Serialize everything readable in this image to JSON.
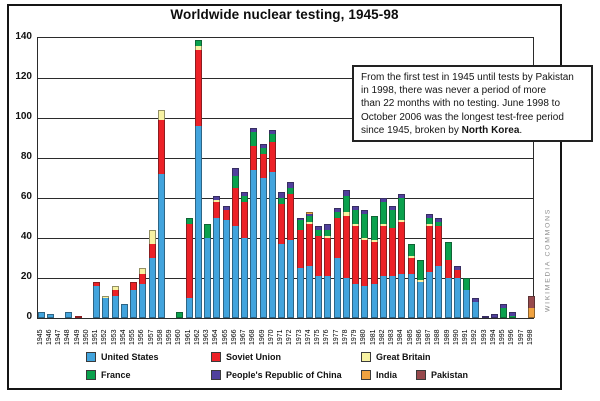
{
  "title": "Worldwide nuclear testing, 1945-98",
  "watermark": "WIKIMEDIA COMMONS",
  "caption": {
    "lines": [
      "From the first test in 1945 until tests by Pakistan",
      "in 1998, there was never a period of more",
      "than 22 months with no testing. June 1998 to",
      "October 2006 was the longest test-free period"
    ],
    "last_line_prefix": "since 1945, broken by ",
    "last_line_bold": "North Korea",
    "last_line_suffix": "."
  },
  "colors": {
    "grid": "#2b2b2b",
    "frame_border": "#151515",
    "watermark_gray": "#8c8c8c",
    "background": "#ffffff"
  },
  "chart_data": {
    "type": "bar",
    "stacked": true,
    "title": "Worldwide nuclear testing, 1945-98",
    "xlabel": "",
    "ylabel": "",
    "ylim": [
      0,
      140
    ],
    "yticks": [
      0,
      20,
      40,
      60,
      80,
      100,
      120,
      140
    ],
    "grid": true,
    "legend_position": "bottom",
    "categories": [
      1945,
      1946,
      1947,
      1948,
      1949,
      1950,
      1951,
      1952,
      1953,
      1954,
      1955,
      1956,
      1957,
      1958,
      1959,
      1960,
      1961,
      1962,
      1963,
      1964,
      1965,
      1966,
      1967,
      1968,
      1969,
      1970,
      1971,
      1972,
      1973,
      1974,
      1975,
      1976,
      1977,
      1978,
      1979,
      1980,
      1981,
      1982,
      1983,
      1984,
      1985,
      1986,
      1987,
      1988,
      1989,
      1990,
      1991,
      1992,
      1993,
      1994,
      1995,
      1996,
      1997,
      1998
    ],
    "series": [
      {
        "name": "United States",
        "color": "#42a4dd",
        "values": [
          3,
          2,
          0,
          3,
          0,
          0,
          16,
          10,
          11,
          7,
          14,
          17,
          30,
          72,
          0,
          0,
          10,
          96,
          40,
          50,
          49,
          46,
          40,
          74,
          70,
          73,
          37,
          39,
          25,
          26,
          21,
          21,
          30,
          20,
          17,
          16,
          17,
          21,
          21,
          22,
          22,
          18,
          23,
          26,
          20,
          20,
          14,
          8,
          0,
          0,
          0,
          0,
          0,
          0
        ]
      },
      {
        "name": "Soviet Union",
        "color": "#ec2127",
        "values": [
          0,
          0,
          0,
          0,
          1,
          0,
          2,
          0,
          3,
          0,
          4,
          5,
          7,
          27,
          0,
          0,
          37,
          38,
          0,
          8,
          5,
          19,
          18,
          12,
          12,
          15,
          20,
          23,
          19,
          21,
          20,
          19,
          20,
          31,
          29,
          23,
          21,
          25,
          24,
          26,
          8,
          0,
          23,
          20,
          9,
          4,
          0,
          0,
          0,
          0,
          0,
          0,
          0,
          0
        ]
      },
      {
        "name": "Great Britain",
        "color": "#f7f2a2",
        "values": [
          0,
          0,
          0,
          0,
          0,
          0,
          0,
          1,
          2,
          0,
          0,
          3,
          7,
          5,
          0,
          0,
          0,
          2,
          0,
          1,
          0,
          0,
          0,
          0,
          0,
          0,
          0,
          0,
          0,
          1,
          0,
          1,
          0,
          2,
          1,
          1,
          1,
          1,
          0,
          1,
          1,
          1,
          1,
          0,
          0,
          0,
          0,
          0,
          0,
          0,
          0,
          0,
          0,
          0
        ]
      },
      {
        "name": "France",
        "color": "#0aa14d",
        "values": [
          0,
          0,
          0,
          0,
          0,
          0,
          0,
          0,
          0,
          0,
          0,
          0,
          0,
          0,
          0,
          3,
          3,
          3,
          7,
          0,
          0,
          6,
          3,
          7,
          3,
          4,
          3,
          3,
          5,
          3,
          3,
          3,
          3,
          8,
          7,
          12,
          12,
          11,
          9,
          11,
          6,
          10,
          3,
          2,
          9,
          0,
          6,
          0,
          0,
          0,
          5,
          1,
          0,
          0
        ]
      },
      {
        "name": "People's Republic of China",
        "color": "#50409d",
        "values": [
          0,
          0,
          0,
          0,
          0,
          0,
          0,
          0,
          0,
          0,
          0,
          0,
          0,
          0,
          0,
          0,
          0,
          0,
          0,
          2,
          2,
          4,
          2,
          2,
          2,
          2,
          3,
          3,
          1,
          1,
          2,
          3,
          2,
          3,
          2,
          2,
          0,
          2,
          2,
          2,
          0,
          0,
          2,
          2,
          0,
          2,
          0,
          2,
          1,
          2,
          2,
          2,
          0,
          0
        ]
      },
      {
        "name": "India",
        "color": "#f0a240",
        "values": [
          0,
          0,
          0,
          0,
          0,
          0,
          0,
          0,
          0,
          0,
          0,
          0,
          0,
          0,
          0,
          0,
          0,
          0,
          0,
          0,
          0,
          0,
          0,
          0,
          0,
          0,
          0,
          0,
          0,
          1,
          0,
          0,
          0,
          0,
          0,
          0,
          0,
          0,
          0,
          0,
          0,
          0,
          0,
          0,
          0,
          0,
          0,
          0,
          0,
          0,
          0,
          0,
          0,
          5
        ]
      },
      {
        "name": "Pakistan",
        "color": "#97494d",
        "values": [
          0,
          0,
          0,
          0,
          0,
          0,
          0,
          0,
          0,
          0,
          0,
          0,
          0,
          0,
          0,
          0,
          0,
          0,
          0,
          0,
          0,
          0,
          0,
          0,
          0,
          0,
          0,
          0,
          0,
          0,
          0,
          0,
          0,
          0,
          0,
          0,
          0,
          0,
          0,
          0,
          0,
          0,
          0,
          0,
          0,
          0,
          0,
          0,
          0,
          0,
          0,
          0,
          0,
          6
        ]
      }
    ]
  }
}
